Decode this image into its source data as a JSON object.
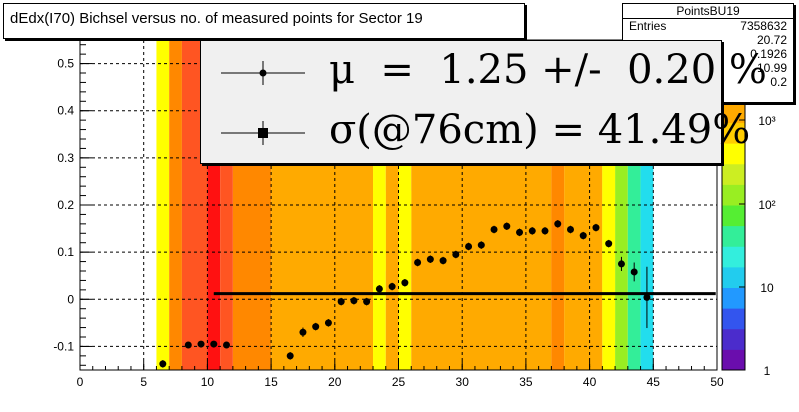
{
  "title": "dEdx(I70) Bichsel versus no. of measured points for Sector 19",
  "stats": {
    "name": "PointsBU19",
    "rows": [
      {
        "label": "Entries",
        "value": "7358632"
      },
      {
        "label": "",
        "value": "20.72"
      },
      {
        "label": "",
        "value": "0.1926"
      },
      {
        "label": "",
        "value": "10.99"
      },
      {
        "label": "",
        "value": "0.2"
      }
    ]
  },
  "legend": {
    "mu_text": "μ  =  1.25 +/-  0.20 %",
    "sigma_text": "σ(@76cm) = 41.49%"
  },
  "colors": {
    "marker": "#000000",
    "fit_line": "#000000",
    "palette": [
      "#6a0dad",
      "#4b2ccc",
      "#3355ee",
      "#2299ff",
      "#22ccee",
      "#33eedd",
      "#33ee99",
      "#55ee33",
      "#99ee22",
      "#ccee22",
      "#ffff00",
      "#ffcc00",
      "#ffaa00",
      "#ff8800",
      "#ff5522",
      "#ff1111"
    ]
  },
  "chart_data": {
    "type": "heatmap",
    "title": "dEdx(I70) Bichsel versus no. of measured points for Sector 19",
    "xlabel": "",
    "ylabel": "",
    "xlim": [
      0,
      50
    ],
    "ylim": [
      -0.15,
      0.55
    ],
    "xticks": [
      "0",
      "5",
      "10",
      "15",
      "20",
      "25",
      "30",
      "35",
      "40",
      "45",
      "50"
    ],
    "yticks": [
      "-0.1",
      "0",
      "0.1",
      "0.2",
      "0.3",
      "0.4",
      "0.5"
    ],
    "zscale": "log",
    "zticks": [
      "1",
      "10",
      "10²",
      "10³"
    ],
    "grid": true,
    "heatmap_columns": [
      {
        "x0": 6,
        "x1": 7,
        "level": 1
      },
      {
        "x0": 7,
        "x1": 8,
        "level": 3
      },
      {
        "x0": 8,
        "x1": 10,
        "level": 4
      },
      {
        "x0": 10,
        "x1": 11,
        "level": 5
      },
      {
        "x0": 11,
        "x1": 12,
        "level": 4
      },
      {
        "x0": 12,
        "x1": 15,
        "level": 3
      },
      {
        "x0": 15,
        "x1": 23,
        "level": 2
      },
      {
        "x0": 23,
        "x1": 24,
        "level": 1
      },
      {
        "x0": 24,
        "x1": 25,
        "level": 2
      },
      {
        "x0": 25,
        "x1": 26,
        "level": 1
      },
      {
        "x0": 26,
        "x1": 37,
        "level": 2
      },
      {
        "x0": 37,
        "x1": 38,
        "level": 3
      },
      {
        "x0": 38,
        "x1": 40,
        "level": 2
      },
      {
        "x0": 40,
        "x1": 41,
        "level": 2
      },
      {
        "x0": 41,
        "x1": 42,
        "level": 1
      },
      {
        "x0": 42,
        "x1": 43,
        "level": 0
      },
      {
        "x0": 43,
        "x1": 44,
        "level": -1
      },
      {
        "x0": 44,
        "x1": 45,
        "level": -2
      }
    ],
    "series": [
      {
        "x": [
          6.5,
          8.5,
          9.5,
          10.5,
          11.5,
          16.5,
          17.5,
          18.5,
          19.5,
          20.5,
          21.5,
          22.5,
          23.5,
          24.5,
          25.5,
          26.5,
          27.5,
          28.5,
          29.5,
          30.5,
          31.5,
          32.5,
          33.5,
          34.5,
          35.5,
          36.5,
          37.5,
          38.5,
          39.5,
          40.5,
          41.5,
          42.5,
          43.5,
          44.5
        ],
        "y": [
          -0.137,
          -0.097,
          -0.095,
          -0.095,
          -0.097,
          -0.12,
          -0.07,
          -0.058,
          -0.05,
          -0.005,
          -0.003,
          -0.005,
          0.022,
          0.027,
          0.035,
          0.078,
          0.085,
          0.082,
          0.095,
          0.112,
          0.115,
          0.148,
          0.155,
          0.142,
          0.145,
          0.145,
          0.16,
          0.148,
          0.135,
          0.152,
          0.118,
          0.075,
          0.058,
          0.004
        ],
        "err": [
          0.008,
          0.004,
          0.004,
          0.004,
          0.004,
          0.008,
          0.01,
          0.008,
          0.008,
          0.008,
          0.008,
          0.008,
          0.008,
          0.008,
          0.008,
          0.008,
          0.008,
          0.008,
          0.008,
          0.008,
          0.008,
          0.008,
          0.008,
          0.008,
          0.008,
          0.008,
          0.008,
          0.008,
          0.008,
          0.008,
          0.008,
          0.015,
          0.02,
          0.065
        ]
      }
    ],
    "fit_line": {
      "x0": 10.5,
      "x1": 49.9,
      "y": 0.012
    }
  }
}
